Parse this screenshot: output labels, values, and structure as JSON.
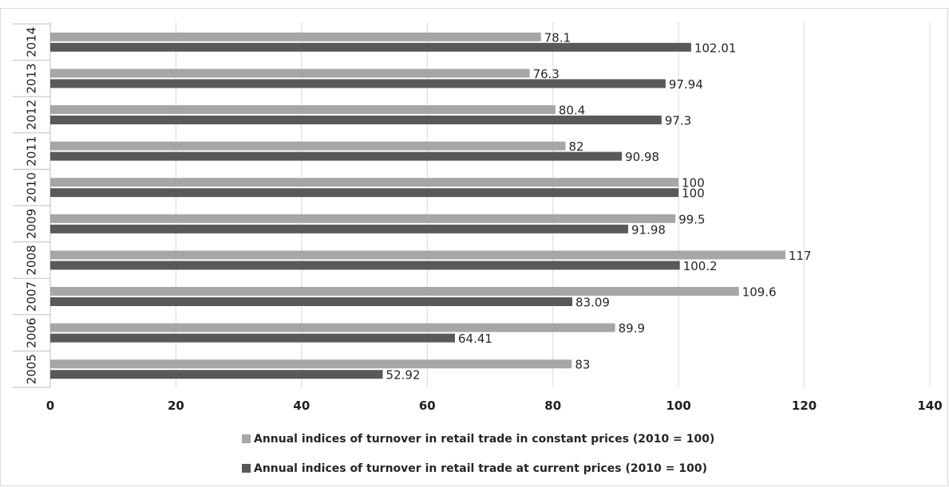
{
  "chart_data": {
    "type": "bar",
    "orientation": "horizontal",
    "categories": [
      "2005",
      "2006",
      "2007",
      "2008",
      "2009",
      "2010",
      "2011",
      "2012",
      "2013",
      "2014"
    ],
    "series": [
      {
        "name": "Annual indices of turnover in retail trade in constant prices (2010 = 100)",
        "color": "#a6a6a6",
        "values": [
          83,
          89.9,
          109.6,
          117,
          99.5,
          100,
          82,
          80.4,
          76.3,
          78.1
        ],
        "labels": [
          "83",
          "89.9",
          "109.6",
          "117",
          "99.5",
          "100",
          "82",
          "80.4",
          "76.3",
          "78.1"
        ]
      },
      {
        "name": "Annual indices of turnover in retail trade at current prices (2010 = 100)",
        "color": "#595959",
        "values": [
          52.92,
          64.41,
          83.09,
          100.2,
          91.98,
          100,
          90.98,
          97.3,
          97.94,
          102.01
        ],
        "labels": [
          "52.92",
          "64.41",
          "83.09",
          "100.2",
          "91.98",
          "100",
          "90.98",
          "97.3",
          "97.94",
          "102.01"
        ]
      }
    ],
    "xlim": [
      0,
      140
    ],
    "xticks": [
      "0",
      "20",
      "40",
      "60",
      "80",
      "100",
      "120",
      "140"
    ],
    "grid": true,
    "legend_position": "bottom",
    "title": "",
    "xlabel": "",
    "ylabel": ""
  }
}
